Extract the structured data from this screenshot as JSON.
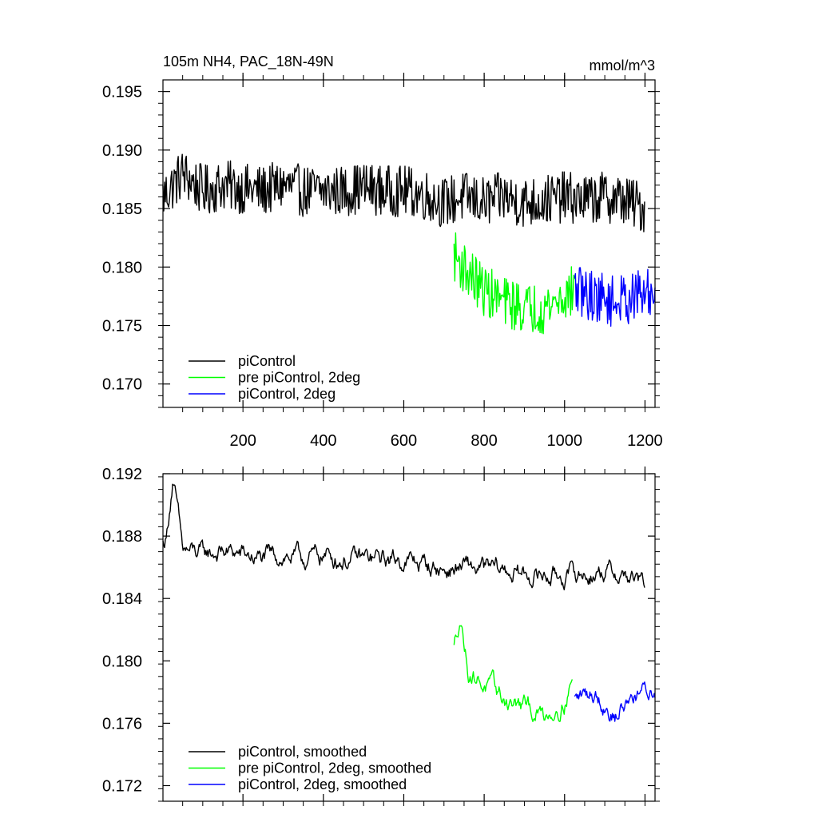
{
  "chart_data": [
    {
      "type": "line",
      "title": "105m NH4, PAC_18N-49N",
      "units": "mmol/m^3",
      "xlim": [
        1,
        1225
      ],
      "ylim": [
        0.168,
        0.196
      ],
      "xticks": [
        200,
        400,
        600,
        800,
        1000,
        1200
      ],
      "xtick_labels": [
        "200",
        "400",
        "600",
        "800",
        "1000",
        "1200"
      ],
      "yticks": [
        0.195,
        0.19,
        0.185,
        0.18,
        0.175,
        0.17
      ],
      "ytick_labels": [
        "0.195",
        "0.190",
        "0.185",
        "0.180",
        "0.175",
        "0.170"
      ],
      "legend_position": "bottom-left",
      "series": [
        {
          "name": "piControl",
          "color": "#000000",
          "x_range": [
            1,
            1200
          ],
          "x": [
            1,
            50,
            100,
            150,
            200,
            250,
            300,
            350,
            400,
            450,
            500,
            550,
            600,
            650,
            700,
            750,
            800,
            850,
            900,
            950,
            1000,
            1050,
            1100,
            1150,
            1200
          ],
          "values": [
            0.186,
            0.188,
            0.1865,
            0.187,
            0.1867,
            0.1865,
            0.187,
            0.1865,
            0.1865,
            0.1865,
            0.1868,
            0.1865,
            0.1865,
            0.1862,
            0.1855,
            0.186,
            0.1855,
            0.186,
            0.1855,
            0.1857,
            0.186,
            0.1857,
            0.186,
            0.1857,
            0.185
          ],
          "noise": 0.0022
        },
        {
          "name": "pre piControl, 2deg",
          "color": "#00ff00",
          "x_range": [
            725,
            1025
          ],
          "x": [
            725,
            760,
            800,
            850,
            900,
            950,
            1000,
            1025
          ],
          "values": [
            0.181,
            0.1795,
            0.178,
            0.177,
            0.1765,
            0.1765,
            0.1775,
            0.178
          ],
          "noise": 0.0022
        },
        {
          "name": "piControl, 2deg",
          "color": "#0000ff",
          "x_range": [
            1025,
            1225
          ],
          "x": [
            1025,
            1075,
            1125,
            1175,
            1225
          ],
          "values": [
            0.178,
            0.1775,
            0.177,
            0.1775,
            0.1778
          ],
          "noise": 0.0022
        }
      ]
    },
    {
      "type": "line",
      "title": "",
      "units": "",
      "xlim": [
        1,
        1225
      ],
      "ylim": [
        0.171,
        0.192
      ],
      "xticks": [
        200,
        400,
        600,
        800,
        1000,
        1200
      ],
      "xtick_labels": [],
      "yticks": [
        0.192,
        0.188,
        0.184,
        0.18,
        0.176,
        0.172
      ],
      "ytick_labels": [
        "0.192",
        "0.188",
        "0.184",
        "0.180",
        "0.176",
        "0.172"
      ],
      "legend_position": "bottom-left",
      "series": [
        {
          "name": "piControl, smoothed",
          "color": "#000000",
          "x_range": [
            1,
            1200
          ],
          "x": [
            1,
            10,
            20,
            25,
            35,
            50,
            100,
            150,
            200,
            250,
            300,
            350,
            400,
            450,
            500,
            550,
            600,
            650,
            700,
            750,
            800,
            850,
            900,
            950,
            1000,
            1050,
            1100,
            1150,
            1200
          ],
          "values": [
            0.1875,
            0.188,
            0.1905,
            0.1915,
            0.19,
            0.187,
            0.1868,
            0.187,
            0.1868,
            0.1865,
            0.1868,
            0.1865,
            0.1868,
            0.1865,
            0.1865,
            0.1865,
            0.1865,
            0.1862,
            0.1858,
            0.186,
            0.1858,
            0.1858,
            0.1855,
            0.1855,
            0.1855,
            0.1855,
            0.1858,
            0.1855,
            0.1848
          ],
          "noise": 0.0009
        },
        {
          "name": "pre piControl, 2deg, smoothed",
          "color": "#00ff00",
          "x_range": [
            725,
            1020
          ],
          "x": [
            725,
            740,
            760,
            800,
            850,
            900,
            950,
            1000,
            1020
          ],
          "values": [
            0.1808,
            0.183,
            0.1795,
            0.1785,
            0.1775,
            0.177,
            0.1765,
            0.1775,
            0.179
          ],
          "noise": 0.0009
        },
        {
          "name": "piControl, 2deg, smoothed",
          "color": "#0000ff",
          "x_range": [
            1025,
            1225
          ],
          "x": [
            1025,
            1075,
            1125,
            1175,
            1225
          ],
          "values": [
            0.1775,
            0.178,
            0.1765,
            0.178,
            0.178
          ],
          "noise": 0.0009
        }
      ]
    }
  ]
}
